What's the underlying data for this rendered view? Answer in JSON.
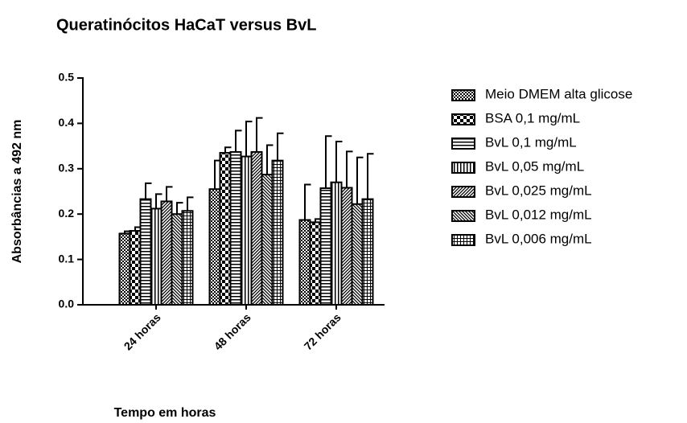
{
  "chart_data": {
    "type": "bar",
    "title": "Queratinócitos HaCaT versus BvL",
    "xlabel": "Tempo em horas",
    "ylabel": "Absorbâncias a 492 nm",
    "categories": [
      "24 horas",
      "48 horas",
      "72 horas"
    ],
    "ylim": [
      0,
      0.5
    ],
    "yticks": [
      {
        "value": 0,
        "label": "0.0"
      },
      0.1,
      0.2,
      0.3,
      0.4,
      0.5
    ],
    "legend": "right",
    "series": [
      {
        "name": "Meio DMEM alta glicose",
        "color": "#000000",
        "pattern": "fine-checker",
        "values": [
          0.157,
          0.255,
          0.187
        ],
        "errors": [
          0.005,
          0.063,
          0.078
        ]
      },
      {
        "name": "BSA 0,1 mg/mL",
        "color": "#000000",
        "pattern": "checker",
        "values": [
          0.163,
          0.335,
          0.182
        ],
        "errors": [
          0.008,
          0.012,
          0.007
        ]
      },
      {
        "name": "BvL 0,1 mg/mL",
        "color": "#000000",
        "pattern": "horizontal",
        "values": [
          0.233,
          0.337,
          0.257
        ],
        "errors": [
          0.035,
          0.047,
          0.115
        ]
      },
      {
        "name": "BvL 0,05 mg/mL",
        "color": "#000000",
        "pattern": "vertical",
        "values": [
          0.212,
          0.327,
          0.27
        ],
        "errors": [
          0.032,
          0.077,
          0.09
        ]
      },
      {
        "name": "BvL 0,025 mg/mL",
        "color": "#000000",
        "pattern": "diagonal-up",
        "values": [
          0.228,
          0.337,
          0.258
        ],
        "errors": [
          0.032,
          0.075,
          0.08
        ]
      },
      {
        "name": "BvL 0,012 mg/mL",
        "color": "#000000",
        "pattern": "diagonal-down",
        "values": [
          0.2,
          0.287,
          0.222
        ],
        "errors": [
          0.025,
          0.065,
          0.103
        ]
      },
      {
        "name": "BvL 0,006 mg/mL",
        "color": "#000000",
        "pattern": "grid",
        "values": [
          0.207,
          0.318,
          0.233
        ],
        "errors": [
          0.03,
          0.06,
          0.1
        ]
      }
    ]
  }
}
